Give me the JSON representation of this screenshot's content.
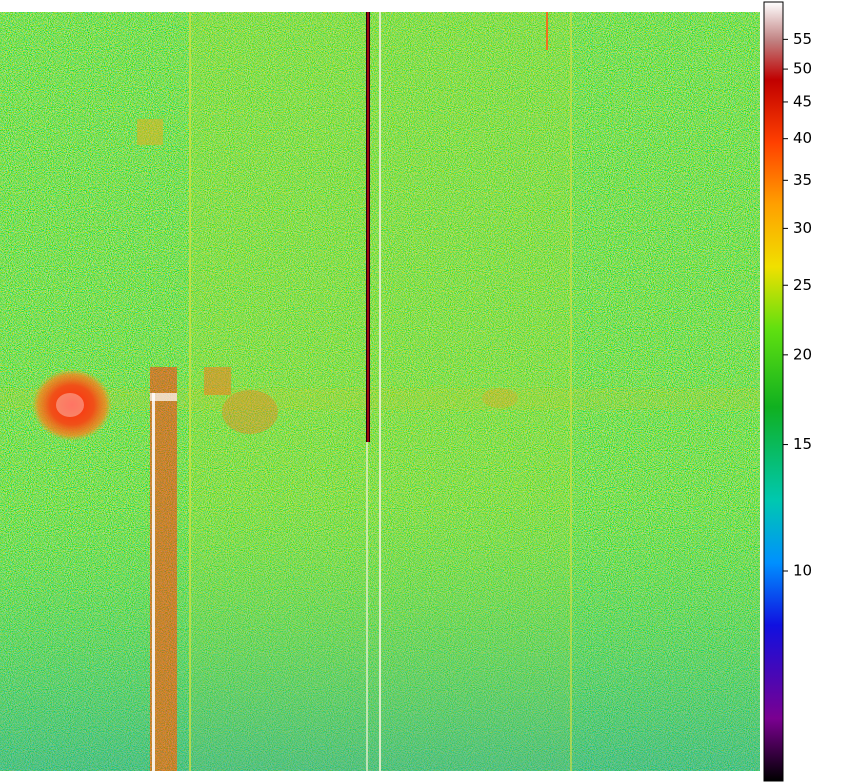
{
  "chart_data": {
    "type": "image",
    "colorbar": {
      "scale": "log",
      "clim": [
        5.1,
        62
      ],
      "ticks": [
        10,
        15,
        20,
        25,
        30,
        35,
        40,
        45,
        50,
        55
      ]
    }
  }
}
